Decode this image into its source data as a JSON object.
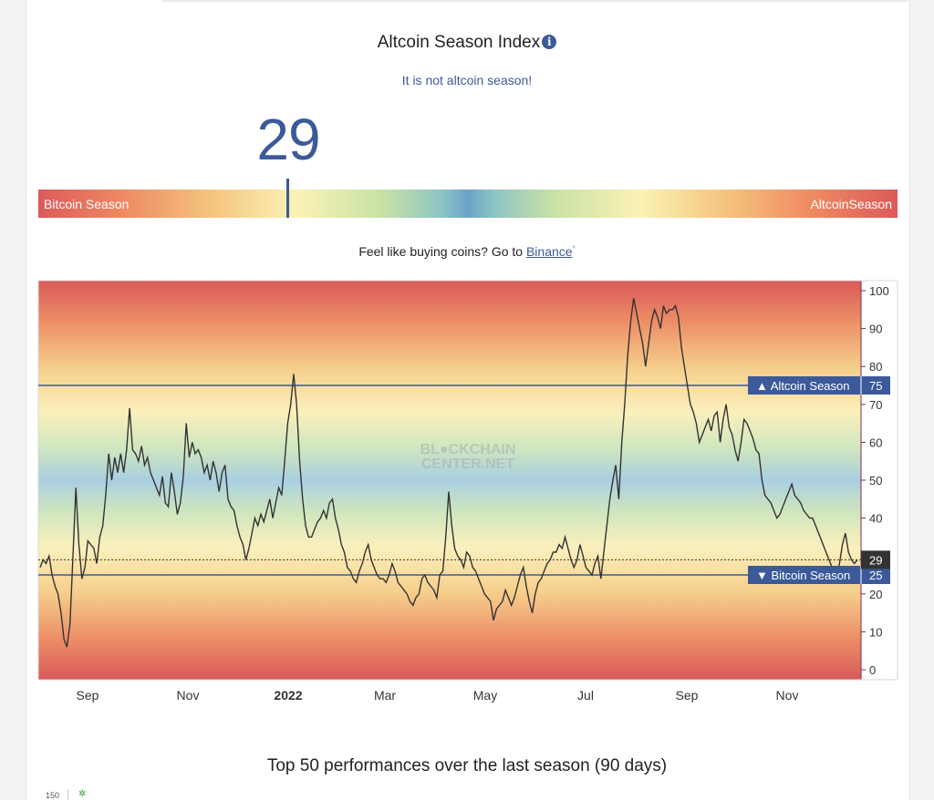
{
  "header": {
    "title": "Altcoin Season Index",
    "info_icon": "i",
    "status": "It is not altcoin season!",
    "index_value": "29"
  },
  "gauge": {
    "left_label": "Bitcoin Season",
    "right_label": "AltcoinSeason",
    "value": 29
  },
  "cta": {
    "prefix": "Feel like buying coins? Go to ",
    "link": "Binance",
    "marker": "*"
  },
  "watermark": [
    "BL●CKCHAIN",
    "CENTER.NET"
  ],
  "chart_data": {
    "type": "line",
    "x_labels": [
      "Sep",
      "Nov",
      "2022",
      "Mar",
      "May",
      "Jul",
      "Sep",
      "Nov"
    ],
    "ylim": [
      0,
      100
    ],
    "yticks": [
      0,
      10,
      20,
      30,
      40,
      50,
      60,
      70,
      80,
      90,
      100
    ],
    "reference_lines": [
      {
        "name": "Altcoin Season",
        "value": 75,
        "symbol": "▲"
      },
      {
        "name": "Bitcoin Season",
        "value": 25,
        "symbol": "▼"
      }
    ],
    "current_value": 29,
    "colors": {
      "line": "#333333",
      "reference": "#3c5a99",
      "current_label_bg": "#333333"
    },
    "series": [
      {
        "values": [
          27,
          29,
          28,
          30,
          25,
          22,
          20,
          15,
          8,
          6,
          12,
          30,
          48,
          33,
          24,
          27,
          34,
          33,
          32,
          28,
          35,
          38,
          46,
          57,
          50,
          56,
          52,
          57,
          52,
          58,
          69,
          58,
          57,
          55,
          59,
          54,
          56,
          52,
          50,
          48,
          46,
          51,
          44,
          43,
          52,
          47,
          41,
          44,
          51,
          65,
          56,
          60,
          57,
          58,
          56,
          52,
          54,
          50,
          55,
          52,
          47,
          52,
          54,
          45,
          43,
          42,
          38,
          35,
          33,
          29,
          32,
          36,
          40,
          38,
          41,
          39,
          42,
          45,
          40,
          44,
          48,
          46,
          55,
          65,
          70,
          78,
          70,
          55,
          45,
          38,
          35,
          35,
          37,
          39,
          40,
          42,
          40,
          44,
          45,
          40,
          37,
          33,
          31,
          27,
          26,
          24,
          23,
          26,
          28,
          31,
          33,
          29,
          27,
          25,
          24,
          24,
          23,
          25,
          28,
          26,
          23,
          22,
          21,
          20,
          18,
          17,
          19,
          20,
          24,
          25,
          23,
          22,
          21,
          19,
          25,
          26,
          35,
          47,
          38,
          32,
          30,
          29,
          27,
          31,
          30,
          27,
          26,
          24,
          22,
          20,
          19,
          18,
          13,
          16,
          17,
          18,
          21,
          19,
          17,
          19,
          22,
          25,
          27,
          22,
          18,
          15,
          20,
          23,
          24,
          26,
          28,
          29,
          31,
          31,
          33,
          32,
          35,
          32,
          29,
          27,
          29,
          33,
          30,
          27,
          26,
          25,
          28,
          30,
          24,
          31,
          38,
          45,
          50,
          54,
          45,
          60,
          70,
          83,
          92,
          98,
          94,
          90,
          86,
          80,
          86,
          92,
          95,
          93,
          90,
          96,
          94,
          95,
          95,
          96,
          93,
          85,
          80,
          75,
          70,
          68,
          65,
          60,
          62,
          64,
          66,
          63,
          67,
          68,
          60,
          66,
          70,
          64,
          62,
          58,
          55,
          60,
          66,
          65,
          63,
          61,
          58,
          57,
          50,
          46,
          45,
          44,
          42,
          40,
          41,
          43,
          45,
          47,
          49,
          46,
          45,
          44,
          42,
          41,
          40,
          40,
          38,
          36,
          34,
          32,
          30,
          28,
          26,
          24,
          28,
          33,
          36,
          31,
          29,
          28,
          29
        ]
      }
    ]
  }
}
